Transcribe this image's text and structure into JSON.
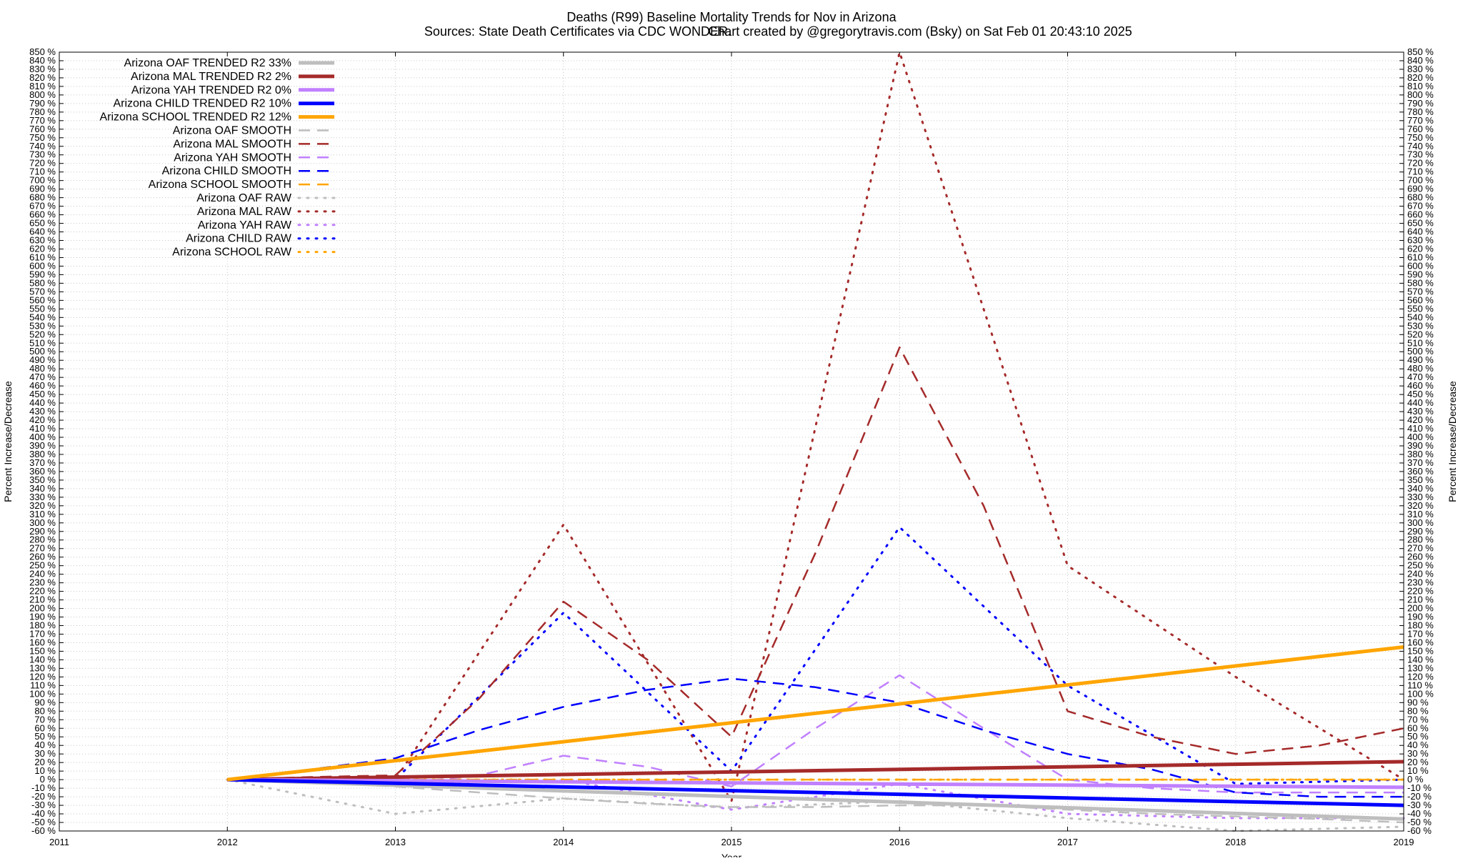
{
  "chart_data": {
    "type": "line",
    "title": "Deaths (R99)  Baseline Mortality Trends for Nov in Arizona",
    "subtitle_left": "Sources: State Death Certificates via CDC WONDER.",
    "subtitle_right": "Chart created by @gregorytravis.com (Bsky) on Sat Feb 01 20:43:10 2025",
    "xlabel": "Year",
    "ylabel_left": "Percent Increase/Decrease",
    "ylabel_right": "Percent Increase/Decrease",
    "xlim": [
      2011,
      2019
    ],
    "ylim": [
      -60,
      850
    ],
    "x_ticks": [
      2011,
      2012,
      2013,
      2014,
      2015,
      2016,
      2017,
      2018,
      2019
    ],
    "y_tick_step": 10,
    "y_tick_suffix": " %",
    "grid": true,
    "legend_position": "top-left",
    "series": [
      {
        "name": "Arizona OAF TRENDED R2  33%",
        "style": "trend",
        "color": "#bebebe",
        "x": [
          2012,
          2019
        ],
        "y": [
          0,
          -46
        ]
      },
      {
        "name": "Arizona MAL TRENDED R2   2%",
        "style": "trend",
        "color": "#a52a2a",
        "x": [
          2012,
          2019
        ],
        "y": [
          0,
          21
        ]
      },
      {
        "name": "Arizona YAH TRENDED R2   0%",
        "style": "trend",
        "color": "#c080ff",
        "x": [
          2012,
          2019
        ],
        "y": [
          0,
          -9
        ]
      },
      {
        "name": "Arizona CHILD TRENDED R2  10%",
        "style": "trend",
        "color": "#0000ff",
        "x": [
          2012,
          2019
        ],
        "y": [
          0,
          -30
        ]
      },
      {
        "name": "Arizona SCHOOL TRENDED R2  12%",
        "style": "trend",
        "color": "#ffa500",
        "x": [
          2012,
          2019
        ],
        "y": [
          0,
          155
        ]
      },
      {
        "name": "Arizona OAF SMOOTH",
        "style": "smooth",
        "color": "#bebebe",
        "x": [
          2012,
          2012.5,
          2013,
          2013.5,
          2014,
          2014.5,
          2015,
          2015.5,
          2016,
          2016.5,
          2017,
          2017.5,
          2018,
          2018.5,
          2019
        ],
        "y": [
          0,
          -3,
          -8,
          -15,
          -22,
          -28,
          -32,
          -32,
          -30,
          -30,
          -35,
          -40,
          -43,
          -46,
          -50
        ]
      },
      {
        "name": "Arizona MAL SMOOTH",
        "style": "smooth",
        "color": "#a52a2a",
        "x": [
          2012,
          2012.5,
          2013,
          2013.5,
          2014,
          2014.5,
          2015,
          2015.5,
          2016,
          2016.5,
          2017,
          2017.5,
          2018,
          2018.5,
          2019
        ],
        "y": [
          0,
          3,
          5,
          95,
          208,
          140,
          50,
          265,
          505,
          320,
          80,
          50,
          30,
          40,
          60
        ]
      },
      {
        "name": "Arizona YAH SMOOTH",
        "style": "smooth",
        "color": "#c080ff",
        "x": [
          2012,
          2012.5,
          2013,
          2013.5,
          2014,
          2014.5,
          2015,
          2015.5,
          2016,
          2016.5,
          2017,
          2017.5,
          2018,
          2018.5,
          2019
        ],
        "y": [
          0,
          -2,
          -5,
          5,
          28,
          15,
          -8,
          60,
          122,
          60,
          0,
          -10,
          -15,
          -15,
          -15
        ]
      },
      {
        "name": "Arizona CHILD SMOOTH",
        "style": "smooth",
        "color": "#0000ff",
        "x": [
          2012,
          2012.5,
          2013,
          2013.5,
          2014,
          2014.5,
          2015,
          2015.5,
          2016,
          2016.5,
          2017,
          2017.5,
          2018,
          2018.5,
          2019
        ],
        "y": [
          0,
          12,
          25,
          58,
          85,
          105,
          118,
          108,
          90,
          58,
          30,
          12,
          -15,
          -20,
          -20
        ]
      },
      {
        "name": "Arizona SCHOOL SMOOTH",
        "style": "smooth",
        "color": "#ffa500",
        "x": [
          2012,
          2013,
          2014,
          2015,
          2016,
          2017,
          2018,
          2019
        ],
        "y": [
          0,
          0,
          0,
          0,
          0,
          0,
          0,
          0
        ]
      },
      {
        "name": "Arizona OAF RAW",
        "style": "raw",
        "color": "#bebebe",
        "x": [
          2012,
          2013,
          2014,
          2015,
          2016,
          2017,
          2018,
          2019
        ],
        "y": [
          0,
          -40,
          -22,
          -33,
          -25,
          -45,
          -60,
          -55
        ]
      },
      {
        "name": "Arizona MAL RAW",
        "style": "raw",
        "color": "#a52a2a",
        "x": [
          2012,
          2013,
          2014,
          2015,
          2016,
          2017,
          2018,
          2019
        ],
        "y": [
          0,
          0,
          298,
          -25,
          850,
          250,
          120,
          0
        ]
      },
      {
        "name": "Arizona YAH RAW",
        "style": "raw",
        "color": "#c080ff",
        "x": [
          2012,
          2013,
          2014,
          2015,
          2016,
          2017,
          2018,
          2019
        ],
        "y": [
          0,
          -5,
          0,
          -35,
          -5,
          -40,
          -45,
          -45
        ]
      },
      {
        "name": "Arizona CHILD RAW",
        "style": "raw",
        "color": "#0000ff",
        "x": [
          2012,
          2013,
          2014,
          2015,
          2016,
          2017,
          2018,
          2019
        ],
        "y": [
          0,
          0,
          195,
          10,
          295,
          110,
          -5,
          0
        ]
      },
      {
        "name": "Arizona SCHOOL RAW",
        "style": "raw",
        "color": "#ffa500",
        "x": [
          2012,
          2013,
          2014,
          2015,
          2016,
          2017,
          2018,
          2019
        ],
        "y": [
          0,
          0,
          0,
          0,
          0,
          0,
          0,
          0
        ]
      }
    ]
  }
}
